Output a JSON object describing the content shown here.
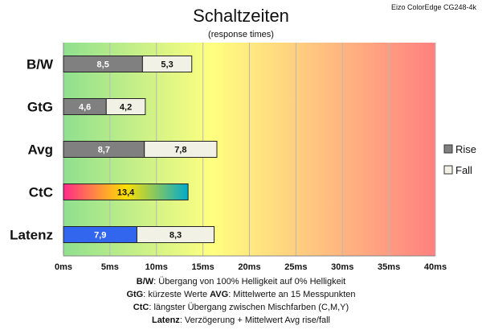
{
  "chart_data": {
    "type": "bar",
    "stacked": true,
    "orientation": "horizontal",
    "title": "Schaltzeiten",
    "subtitle": "(response times)",
    "source_label": "Eizo ColorEdge CG248-4k",
    "categories": [
      "B/W",
      "GtG",
      "Avg",
      "CtC",
      "Latenz"
    ],
    "series": [
      {
        "name": "Rise",
        "values": [
          8.5,
          4.6,
          8.7,
          13.4,
          7.9
        ],
        "labels": [
          "8,5",
          "4,6",
          "8,7",
          "13,4",
          "7,9"
        ],
        "color": "#808080"
      },
      {
        "name": "Fall",
        "values": [
          5.3,
          4.2,
          7.8,
          null,
          8.3
        ],
        "labels": [
          "5,3",
          "4,2",
          "7,8",
          "",
          "8,3"
        ],
        "color": "#f2f1e6"
      }
    ],
    "xlim": [
      0,
      40
    ],
    "x_ticks": [
      0,
      5,
      10,
      15,
      20,
      25,
      30,
      35,
      40
    ],
    "x_tick_labels": [
      "0ms",
      "5ms",
      "10ms",
      "15ms",
      "20ms",
      "25ms",
      "30ms",
      "35ms",
      "40ms"
    ],
    "grid": true,
    "legend_position": "right",
    "background_gradient": [
      "#8fe08f",
      "#ffff80",
      "#ff8080"
    ],
    "ctc_bar_gradient": [
      "#ff2a8a",
      "#ffe000",
      "#00aacc"
    ],
    "latenz_rise_color": "#3366ee"
  },
  "notes": [
    {
      "parts": [
        {
          "b": "B/W",
          "t": ":  Übergang von 100% Helligkeit auf 0% Helligkeit"
        }
      ]
    },
    {
      "parts": [
        {
          "b": "GtG",
          "t": ": kürzeste  Werte        "
        },
        {
          "b": "AVG",
          "t": ":  Mittelwerte  an 15 Messpunkten"
        }
      ]
    },
    {
      "parts": [
        {
          "b": "CtC",
          "t": ": längster Übergang  zwischen Mischfarben  (C,M,Y)"
        }
      ]
    },
    {
      "parts": [
        {
          "b": "Latenz",
          "t": ": Verzögerung  + Mittelwert Avg rise/fall"
        }
      ]
    }
  ]
}
